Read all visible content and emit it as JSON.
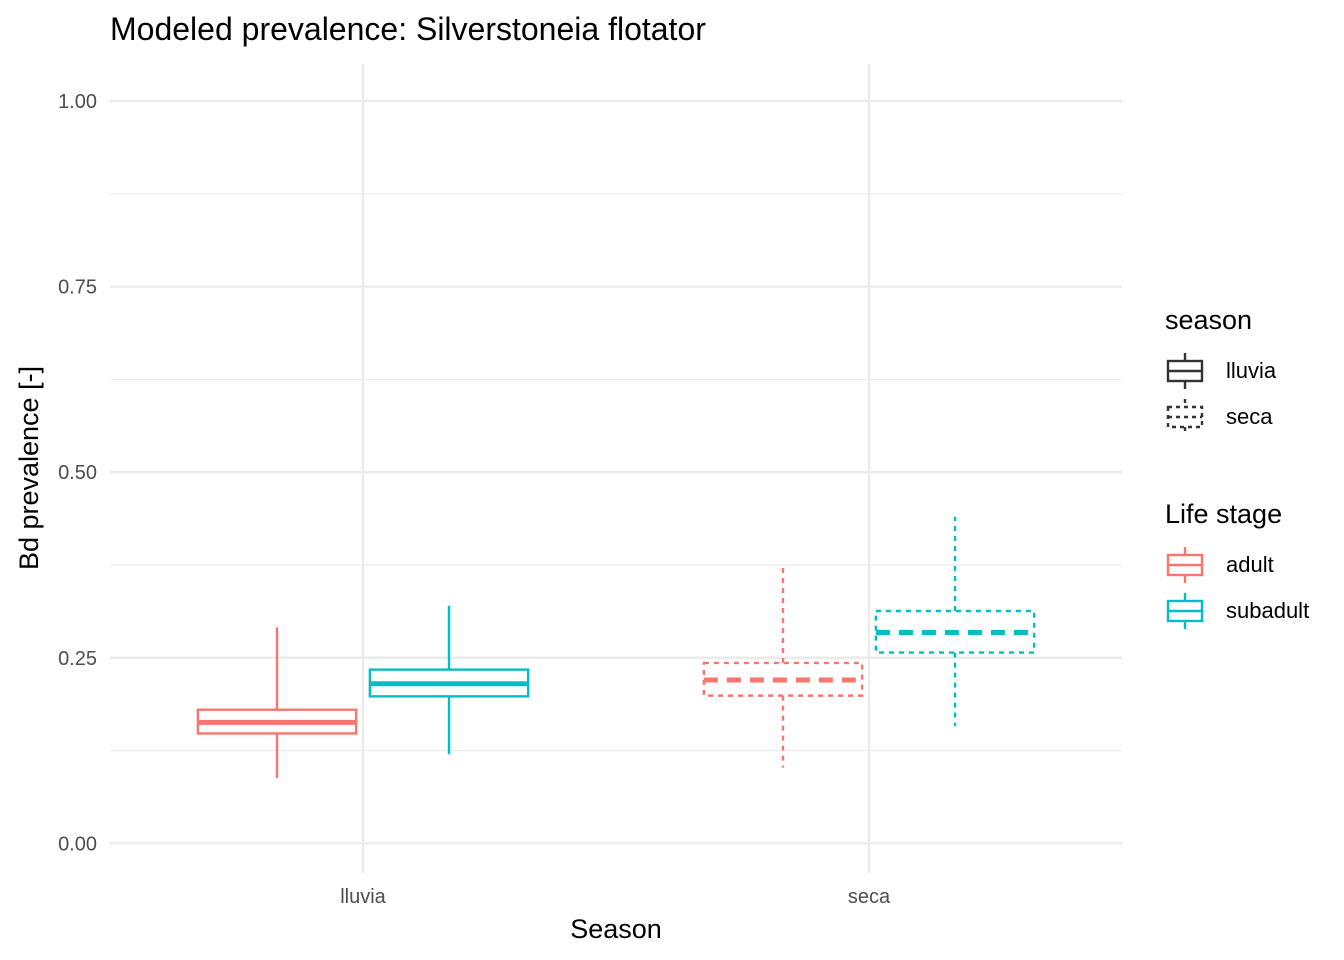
{
  "chart_data": {
    "type": "boxplot",
    "title": "Modeled prevalence: Silverstoneia flotator",
    "xlabel": "Season",
    "ylabel": "Bd prevalence [-]",
    "categories": [
      "lluvia",
      "seca"
    ],
    "ylim": [
      -0.04,
      1.05
    ],
    "yticks": [
      0.0,
      0.25,
      0.5,
      0.75,
      1.0
    ],
    "ytick_labels": [
      "0.00",
      "0.25",
      "0.50",
      "0.75",
      "1.00"
    ],
    "grid": true,
    "series": [
      {
        "name": "adult",
        "color": "#F8766D",
        "boxes": [
          {
            "category": "lluvia",
            "season": "lluvia",
            "min": 0.088,
            "q1": 0.148,
            "median": 0.163,
            "q3": 0.18,
            "max": 0.291
          },
          {
            "category": "seca",
            "season": "seca",
            "min": 0.102,
            "q1": 0.199,
            "median": 0.22,
            "q3": 0.243,
            "max": 0.374
          }
        ]
      },
      {
        "name": "subadult",
        "color": "#00BFC4",
        "boxes": [
          {
            "category": "lluvia",
            "season": "lluvia",
            "min": 0.12,
            "q1": 0.198,
            "median": 0.215,
            "q3": 0.234,
            "max": 0.32
          },
          {
            "category": "seca",
            "season": "seca",
            "min": 0.158,
            "q1": 0.257,
            "median": 0.284,
            "q3": 0.313,
            "max": 0.44
          }
        ]
      }
    ],
    "legends": [
      {
        "title": "season",
        "entries": [
          {
            "label": "lluvia",
            "linetype": "solid"
          },
          {
            "label": "seca",
            "linetype": "dotted"
          }
        ]
      },
      {
        "title": "Life stage",
        "entries": [
          {
            "label": "adult",
            "color": "#F8766D"
          },
          {
            "label": "subadult",
            "color": "#00BFC4"
          }
        ]
      }
    ],
    "legend_position": "right"
  }
}
